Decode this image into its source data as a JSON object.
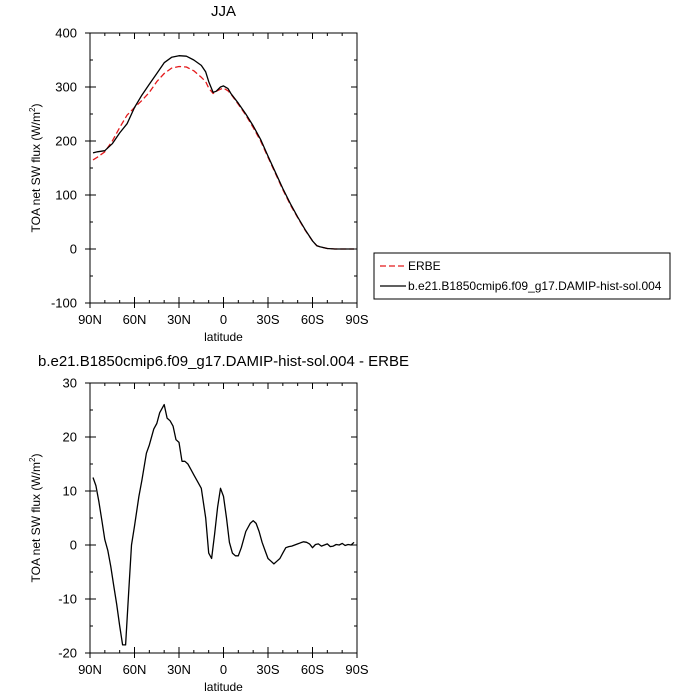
{
  "chart_data": [
    {
      "type": "line",
      "title": "JJA",
      "xlabel": "latitude",
      "ylabel": "TOA net SW flux (W/m",
      "ylabel_sup": "2",
      "ylabel_end": ")",
      "xlim": [
        90,
        -90
      ],
      "ylim": [
        -100,
        400
      ],
      "xticks": [
        90,
        60,
        30,
        0,
        -30,
        -60,
        -90
      ],
      "xtick_labels": [
        "90N",
        "60N",
        "30N",
        "0",
        "30S",
        "60S",
        "90S"
      ],
      "yticks": [
        -100,
        0,
        100,
        200,
        300,
        400
      ],
      "ytick_labels": [
        "-100",
        "0",
        "100",
        "200",
        "300",
        "400"
      ],
      "legend_position": "right",
      "series": [
        {
          "name": "ERBE",
          "color": "#e41a1c",
          "dash": "dashed",
          "x": [
            88,
            85,
            80,
            75,
            70,
            65,
            60,
            55,
            50,
            45,
            40,
            35,
            30,
            25,
            20,
            15,
            12,
            10,
            7,
            5,
            2,
            0,
            -3,
            -5,
            -10,
            -15,
            -20,
            -25,
            -30,
            -35,
            -40,
            -45,
            -50,
            -55,
            -60,
            -63,
            -65,
            -70,
            -75,
            -80,
            -85,
            -88
          ],
          "values": [
            165,
            170,
            180,
            200,
            225,
            248,
            262,
            275,
            290,
            310,
            325,
            335,
            338,
            337,
            330,
            318,
            310,
            298,
            288,
            292,
            296,
            298,
            293,
            287,
            268,
            248,
            225,
            200,
            170,
            140,
            110,
            82,
            58,
            35,
            15,
            6,
            4,
            1,
            0,
            0,
            0,
            0
          ]
        },
        {
          "name": "b.e21.B1850cmip6.f09_g17.DAMIP-hist-sol.004",
          "color": "#000000",
          "dash": "solid",
          "x": [
            88,
            85,
            80,
            75,
            70,
            65,
            60,
            55,
            50,
            45,
            40,
            35,
            30,
            25,
            20,
            15,
            12,
            10,
            7,
            5,
            2,
            0,
            -3,
            -5,
            -10,
            -15,
            -20,
            -25,
            -30,
            -35,
            -40,
            -45,
            -50,
            -55,
            -60,
            -63,
            -65,
            -70,
            -75,
            -80,
            -85,
            -88
          ],
          "values": [
            178,
            180,
            182,
            195,
            215,
            232,
            262,
            285,
            305,
            325,
            345,
            355,
            358,
            357,
            350,
            340,
            328,
            310,
            290,
            292,
            300,
            302,
            297,
            288,
            270,
            250,
            228,
            203,
            172,
            142,
            112,
            84,
            59,
            36,
            15,
            6,
            4,
            1,
            0,
            0,
            0,
            0
          ]
        }
      ]
    },
    {
      "type": "line",
      "title": "b.e21.B1850cmip6.f09_g17.DAMIP-hist-sol.004 - ERBE",
      "xlabel": "latitude",
      "ylabel": "TOA net SW flux (W/m",
      "ylabel_sup": "2",
      "ylabel_end": ")",
      "xlim": [
        90,
        -90
      ],
      "ylim": [
        -20,
        30
      ],
      "xticks": [
        90,
        60,
        30,
        0,
        -30,
        -60,
        -90
      ],
      "xtick_labels": [
        "90N",
        "60N",
        "30N",
        "0",
        "30S",
        "60S",
        "90S"
      ],
      "yticks": [
        -20,
        -10,
        0,
        10,
        20,
        30
      ],
      "ytick_labels": [
        "-20",
        "-10",
        "0",
        "10",
        "20",
        "30"
      ],
      "series": [
        {
          "color": "#000000",
          "dash": "solid",
          "x": [
            88,
            86,
            84,
            82,
            80,
            78,
            76,
            74,
            72,
            70,
            68,
            66,
            64,
            62,
            60,
            57,
            55,
            52,
            50,
            47,
            45,
            43,
            40,
            38,
            36,
            34,
            32,
            30,
            28,
            26,
            24,
            22,
            20,
            18,
            15,
            12,
            10,
            8,
            6,
            4,
            2,
            0,
            -2,
            -4,
            -6,
            -8,
            -10,
            -12,
            -15,
            -18,
            -20,
            -22,
            -24,
            -26,
            -28,
            -30,
            -32,
            -34,
            -36,
            -38,
            -40,
            -42,
            -44,
            -46,
            -48,
            -50,
            -52,
            -54,
            -56,
            -58,
            -60,
            -62,
            -64,
            -66,
            -68,
            -70,
            -72,
            -74,
            -76,
            -78,
            -80,
            -82,
            -84,
            -86,
            -88
          ],
          "values": [
            12.5,
            11.0,
            8.0,
            4.5,
            1.0,
            -1.0,
            -4.0,
            -7.5,
            -11.0,
            -15.0,
            -18.5,
            -18.5,
            -9.0,
            0.0,
            3.5,
            9.0,
            12.0,
            17.0,
            18.5,
            21.5,
            22.5,
            24.5,
            26.0,
            23.5,
            23.0,
            22.0,
            19.5,
            19.0,
            15.5,
            15.5,
            15.0,
            14.0,
            13.0,
            12.0,
            10.5,
            5.0,
            -1.5,
            -2.5,
            2.0,
            7.0,
            10.5,
            9.0,
            5.0,
            0.5,
            -1.5,
            -2.0,
            -2.0,
            -0.5,
            2.5,
            4.0,
            4.5,
            4.0,
            2.5,
            0.5,
            -1.0,
            -2.5,
            -3.0,
            -3.5,
            -3.0,
            -2.5,
            -1.5,
            -0.5,
            -0.3,
            -0.2,
            0.0,
            0.2,
            0.4,
            0.6,
            0.5,
            0.2,
            -0.5,
            0.1,
            0.2,
            -0.2,
            0.0,
            0.2,
            -0.3,
            -0.2,
            0.1,
            0.0,
            0.3,
            -0.1,
            0.1,
            0.0,
            0.5
          ]
        }
      ]
    }
  ]
}
